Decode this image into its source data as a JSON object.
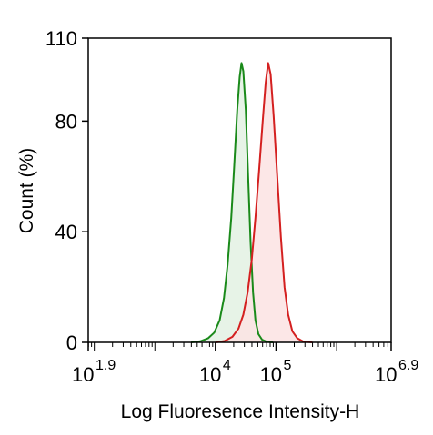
{
  "chart_data": {
    "type": "area",
    "xlabel": "Log Fluoresence Intensity-H",
    "ylabel": "Count  (%)",
    "x_scale": "log10",
    "xlim_log10": [
      1.9,
      6.9
    ],
    "ylim": [
      0,
      110
    ],
    "y_ticks": [
      {
        "value": 0,
        "label": "0"
      },
      {
        "value": 40,
        "label": "40"
      },
      {
        "value": 80,
        "label": "80"
      },
      {
        "value": 110,
        "label": "110"
      }
    ],
    "x_ticks": [
      {
        "log10": 1.9,
        "base": "10",
        "exp": "1.9"
      },
      {
        "log10": 4,
        "base": "10",
        "exp": "4"
      },
      {
        "log10": 5,
        "base": "10",
        "exp": "5"
      },
      {
        "log10": 6.9,
        "base": "10",
        "exp": "6.9"
      }
    ],
    "grid": false,
    "series": [
      {
        "color": "#1a8a1a",
        "fill": "#e3f1e3",
        "points_log10x_y": [
          [
            3.6,
            0
          ],
          [
            3.75,
            0.4
          ],
          [
            3.88,
            1.5
          ],
          [
            3.98,
            3.5
          ],
          [
            4.07,
            8
          ],
          [
            4.14,
            16
          ],
          [
            4.2,
            28
          ],
          [
            4.26,
            45
          ],
          [
            4.31,
            64
          ],
          [
            4.36,
            84
          ],
          [
            4.4,
            96
          ],
          [
            4.43,
            101
          ],
          [
            4.46,
            98
          ],
          [
            4.5,
            84
          ],
          [
            4.54,
            60
          ],
          [
            4.58,
            36
          ],
          [
            4.62,
            18
          ],
          [
            4.66,
            8
          ],
          [
            4.71,
            3
          ],
          [
            4.77,
            1
          ],
          [
            4.85,
            0.2
          ],
          [
            4.95,
            0
          ]
        ]
      },
      {
        "color": "#d42020",
        "fill": "#fbe3e3",
        "points_log10x_y": [
          [
            4.0,
            0
          ],
          [
            4.15,
            0.5
          ],
          [
            4.28,
            2
          ],
          [
            4.38,
            5
          ],
          [
            4.46,
            10
          ],
          [
            4.53,
            18
          ],
          [
            4.6,
            30
          ],
          [
            4.66,
            45
          ],
          [
            4.72,
            62
          ],
          [
            4.78,
            80
          ],
          [
            4.83,
            94
          ],
          [
            4.87,
            101
          ],
          [
            4.91,
            97
          ],
          [
            4.96,
            82
          ],
          [
            5.02,
            60
          ],
          [
            5.08,
            38
          ],
          [
            5.14,
            20
          ],
          [
            5.2,
            10
          ],
          [
            5.27,
            4
          ],
          [
            5.35,
            1.5
          ],
          [
            5.45,
            0.3
          ],
          [
            5.6,
            0
          ]
        ]
      }
    ]
  }
}
